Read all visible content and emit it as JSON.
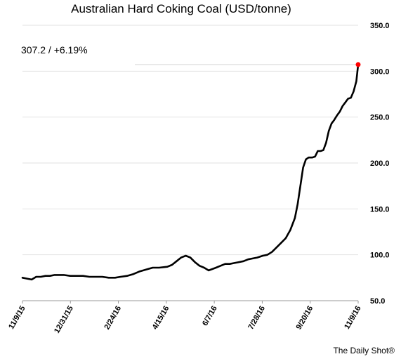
{
  "chart_data": {
    "type": "line",
    "title": "Australian Hard Coking Coal (USD/tonne)",
    "annotation": "307.2  /  +6.19%",
    "source": "The Daily Shot®",
    "xlabel": "",
    "ylabel": "",
    "x_ticks": [
      "11/9/15",
      "12/31/15",
      "2/24/16",
      "4/15/16",
      "6/7/16",
      "7/28/16",
      "9/20/16",
      "11/9/16"
    ],
    "y_ticks": [
      "50.0",
      "100.0",
      "150.0",
      "200.0",
      "250.0",
      "300.0",
      "350.0"
    ],
    "ylim": [
      50,
      350
    ],
    "xlim": [
      "2015-11-09",
      "2016-11-09"
    ],
    "grid": "horizontal",
    "series": [
      {
        "color": "#000000",
        "last_point_color": "#ff0000",
        "x": [
          "2015-11-09",
          "2015-11-14",
          "2015-11-19",
          "2015-11-24",
          "2015-11-29",
          "2015-12-04",
          "2015-12-09",
          "2015-12-14",
          "2015-12-19",
          "2015-12-24",
          "2015-12-31",
          "2016-01-07",
          "2016-01-14",
          "2016-01-21",
          "2016-01-28",
          "2016-02-04",
          "2016-02-11",
          "2016-02-18",
          "2016-02-24",
          "2016-03-02",
          "2016-03-09",
          "2016-03-16",
          "2016-03-23",
          "2016-03-30",
          "2016-04-06",
          "2016-04-15",
          "2016-04-20",
          "2016-04-25",
          "2016-04-30",
          "2016-05-05",
          "2016-05-10",
          "2016-05-15",
          "2016-05-20",
          "2016-05-25",
          "2016-05-30",
          "2016-06-07",
          "2016-06-12",
          "2016-06-17",
          "2016-06-22",
          "2016-06-27",
          "2016-07-02",
          "2016-07-07",
          "2016-07-12",
          "2016-07-17",
          "2016-07-22",
          "2016-07-28",
          "2016-08-02",
          "2016-08-07",
          "2016-08-12",
          "2016-08-17",
          "2016-08-22",
          "2016-08-27",
          "2016-09-01",
          "2016-09-04",
          "2016-09-07",
          "2016-09-10",
          "2016-09-13",
          "2016-09-16",
          "2016-09-20",
          "2016-09-23",
          "2016-09-26",
          "2016-09-29",
          "2016-10-02",
          "2016-10-05",
          "2016-10-08",
          "2016-10-11",
          "2016-10-14",
          "2016-10-17",
          "2016-10-20",
          "2016-10-23",
          "2016-10-26",
          "2016-10-29",
          "2016-11-01",
          "2016-11-04",
          "2016-11-07",
          "2016-11-09"
        ],
        "values": [
          75,
          74,
          73,
          76,
          76,
          77,
          77,
          78,
          78,
          78,
          77,
          77,
          77,
          76,
          76,
          76,
          75,
          75,
          76,
          77,
          79,
          82,
          84,
          86,
          86,
          87,
          89,
          93,
          97,
          99,
          97,
          92,
          88,
          86,
          83,
          86,
          88,
          90,
          90,
          91,
          92,
          93,
          95,
          96,
          97,
          99,
          100,
          103,
          108,
          113,
          118,
          127,
          140,
          155,
          175,
          195,
          204,
          206,
          206,
          207,
          213,
          213,
          214,
          222,
          235,
          243,
          247,
          252,
          256,
          262,
          266,
          270,
          271,
          278,
          289,
          307.2
        ]
      }
    ]
  }
}
